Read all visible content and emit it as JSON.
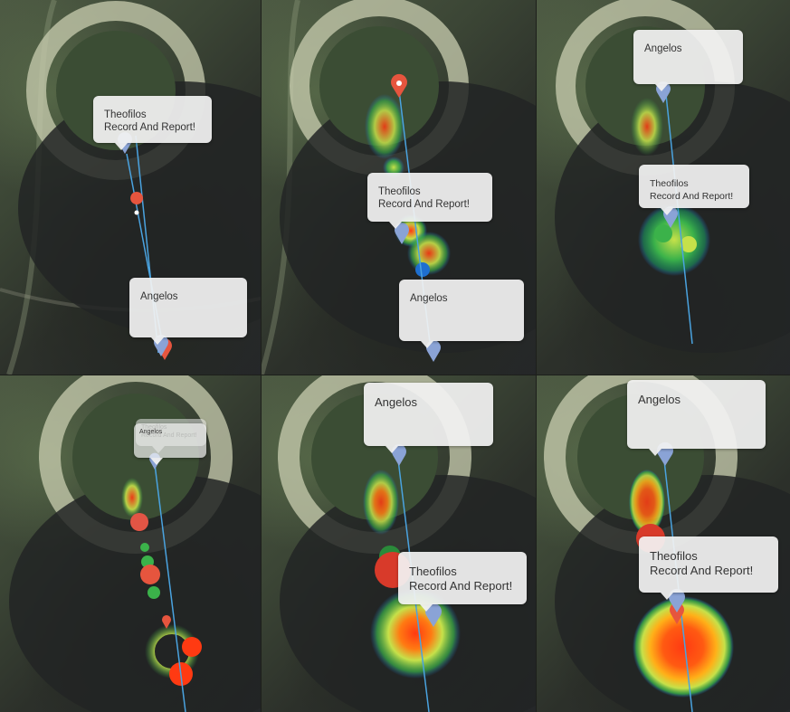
{
  "user_a": {
    "name": "Theofilos",
    "message": "Record And Report!"
  },
  "user_b": {
    "name": "Angelos"
  },
  "colors": {
    "track_line": "#4aa3e0",
    "pin_blue": "#8aa3d6",
    "pin_red": "#e6553e",
    "heat_cool": "#3bb24a",
    "heat_mid": "#c6e14a",
    "heat_hot": "#ff3a12"
  },
  "icons": [
    "map-pin-blue-icon",
    "map-pin-red-icon"
  ]
}
